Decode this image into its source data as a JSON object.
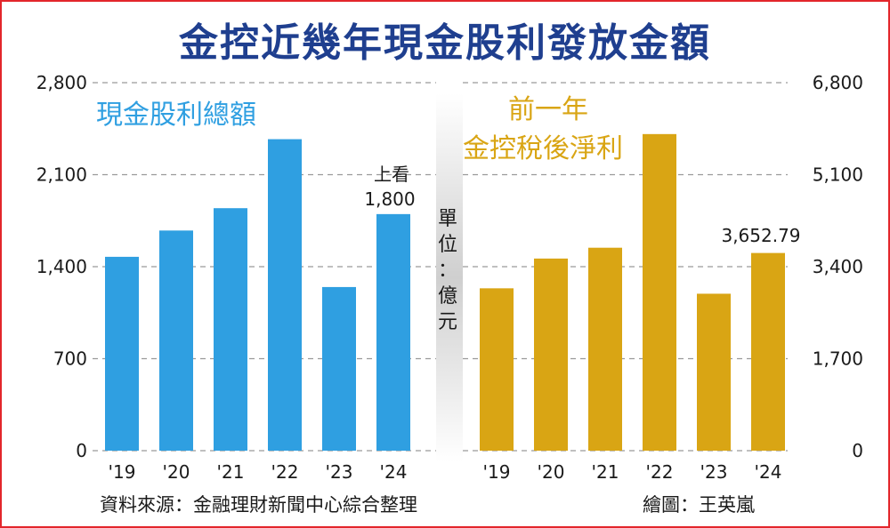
{
  "title": "金控近幾年現金股利發放金額",
  "chart_data": [
    {
      "type": "bar",
      "series_name": "現金股利總額",
      "categories": [
        "'19",
        "'20",
        "'21",
        "'22",
        "'23",
        "'24"
      ],
      "values": [
        1475,
        1675,
        1845,
        2370,
        1245,
        1800
      ],
      "yticks": [
        "2,800",
        "2,100",
        "1,400",
        "700",
        "0"
      ],
      "ylim": [
        0,
        2800
      ],
      "color": "#2f9fe1",
      "annotation": {
        "line1": "上看",
        "line2": "1,800",
        "index": 5
      }
    },
    {
      "type": "bar",
      "series_name_line1": "前一年",
      "series_name_line2": "金控稅後淨利",
      "categories": [
        "'19",
        "'20",
        "'21",
        "'22",
        "'23",
        "'24"
      ],
      "values": [
        3000,
        3550,
        3750,
        5850,
        2900,
        3652.79
      ],
      "yticks": [
        "6,800",
        "5,100",
        "3,400",
        "1,700",
        "0"
      ],
      "ylim": [
        0,
        6800
      ],
      "color": "#d9a514",
      "annotation": {
        "text": "3,652.79",
        "index": 5
      }
    }
  ],
  "unit_label": [
    "單",
    "位",
    "：",
    "億",
    "元"
  ],
  "source": "資料來源：金融理財新聞中心綜合整理",
  "credit": "繪圖：王英嵐"
}
